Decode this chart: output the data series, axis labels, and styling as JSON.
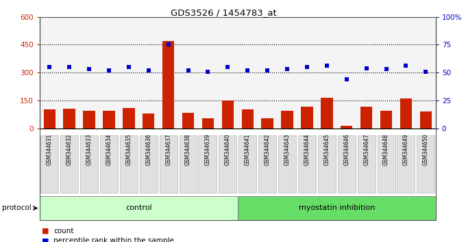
{
  "title": "GDS3526 / 1454783_at",
  "samples": [
    "GSM344631",
    "GSM344632",
    "GSM344633",
    "GSM344634",
    "GSM344635",
    "GSM344636",
    "GSM344637",
    "GSM344638",
    "GSM344639",
    "GSM344640",
    "GSM344641",
    "GSM344642",
    "GSM344643",
    "GSM344644",
    "GSM344645",
    "GSM344646",
    "GSM344647",
    "GSM344648",
    "GSM344649",
    "GSM344650"
  ],
  "counts": [
    100,
    105,
    95,
    95,
    110,
    80,
    470,
    85,
    55,
    150,
    100,
    55,
    95,
    115,
    165,
    15,
    115,
    95,
    160,
    90
  ],
  "percentile_ranks": [
    55,
    55,
    53,
    52,
    55,
    52,
    75,
    52,
    51,
    55,
    52,
    52,
    53,
    55,
    56,
    44,
    54,
    53,
    56,
    51
  ],
  "control_count": 10,
  "myostatin_count": 10,
  "bar_color": "#cc2200",
  "dot_color": "#0000cc",
  "ylim_left": [
    0,
    600
  ],
  "ylim_right": [
    0,
    100
  ],
  "yticks_left": [
    0,
    150,
    300,
    450,
    600
  ],
  "yticks_right": [
    0,
    25,
    50,
    75,
    100
  ],
  "ytick_labels_right": [
    "0",
    "25",
    "50",
    "75",
    "100%"
  ],
  "hlines": [
    150,
    300,
    450
  ],
  "control_color": "#ccffcc",
  "myostatin_color": "#66dd66",
  "protocol_label": "protocol"
}
